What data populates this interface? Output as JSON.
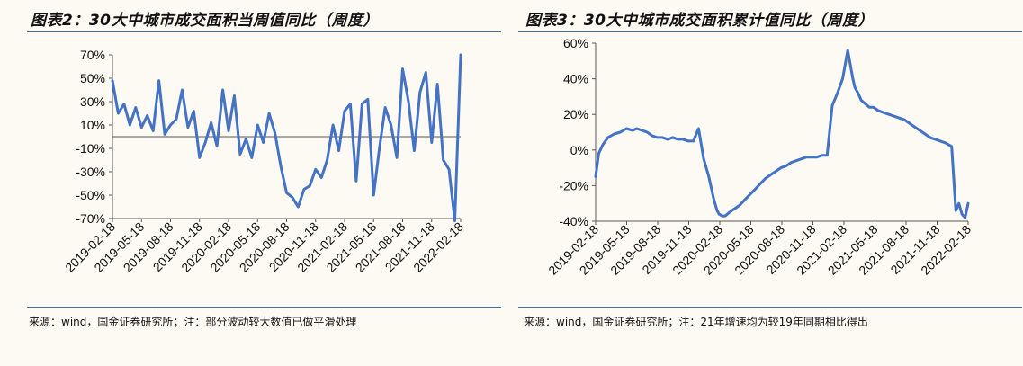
{
  "chart_data": [
    {
      "type": "line",
      "title": "图表2：30大中城市成交面积当周值同比（周度）",
      "xlabel": "",
      "ylabel": "",
      "ylim": [
        -70,
        70
      ],
      "yticks": [
        "70%",
        "50%",
        "30%",
        "10%",
        "-10%",
        "-30%",
        "-50%",
        "-70%"
      ],
      "xticks": [
        "2019-02-18",
        "2019-05-18",
        "2019-08-18",
        "2019-11-18",
        "2020-02-18",
        "2020-05-18",
        "2020-08-18",
        "2020-11-18",
        "2021-02-18",
        "2021-05-18",
        "2021-08-18",
        "2021-11-18",
        "2022-02-18"
      ],
      "grid": false,
      "legend": "none",
      "baseline": 0,
      "color": "#4472c4",
      "x": [
        0,
        0.6,
        1.2,
        1.8,
        2.4,
        3,
        3.6,
        4.2,
        4.8,
        5.4,
        6,
        6.6,
        7.2,
        7.8,
        8.4,
        9,
        9.6,
        10.2,
        10.8,
        11.4,
        12,
        12.6,
        13.2,
        13.8,
        14.4,
        15,
        15.6,
        16.2,
        16.8,
        17.4,
        18,
        18.6,
        19.2,
        19.8,
        20.4,
        21,
        21.6,
        22.2,
        22.8,
        23.4,
        24,
        24.6,
        25.2,
        25.8,
        26.4,
        27,
        27.6,
        28.2,
        28.8,
        29.4,
        30,
        30.6,
        31.2,
        31.8,
        32.4,
        33,
        33.6,
        34.2,
        34.8,
        35.4,
        36
      ],
      "values": [
        48,
        20,
        28,
        10,
        25,
        8,
        18,
        5,
        48,
        2,
        10,
        15,
        40,
        8,
        22,
        -18,
        -5,
        12,
        -8,
        40,
        5,
        35,
        -15,
        -2,
        -18,
        10,
        -5,
        20,
        3,
        -25,
        -48,
        -52,
        -60,
        -45,
        -42,
        -28,
        -35,
        -20,
        10,
        -12,
        22,
        28,
        -38,
        28,
        32,
        -50,
        -10,
        25,
        10,
        -18,
        58,
        30,
        -12,
        38,
        55,
        -5,
        45,
        -20,
        -28,
        -72,
        70
      ]
    },
    {
      "type": "line",
      "title": "图表3：30大中城市成交面积累计值同比（周度）",
      "xlabel": "",
      "ylabel": "",
      "ylim": [
        -40,
        60
      ],
      "yticks": [
        "60%",
        "40%",
        "20%",
        "0%",
        "-20%",
        "-40%"
      ],
      "xticks": [
        "2019-02-18",
        "2019-05-18",
        "2019-08-18",
        "2019-11-18",
        "2020-02-18",
        "2020-05-18",
        "2020-08-18",
        "2020-11-18",
        "2021-02-18",
        "2021-05-18",
        "2021-08-18",
        "2021-11-18",
        "2022-02-18"
      ],
      "grid": false,
      "legend": "none",
      "color": "#4472c4",
      "x": [
        0,
        0.3,
        0.7,
        1.2,
        1.8,
        2.4,
        3,
        3.6,
        4,
        4.5,
        5,
        5.5,
        6,
        6.5,
        7,
        7.5,
        8,
        8.5,
        9,
        9.5,
        10,
        10.5,
        11,
        11.5,
        11.8,
        12,
        12.3,
        12.6,
        13,
        13.5,
        14,
        14.5,
        15,
        15.5,
        16,
        16.5,
        17,
        17.5,
        18,
        18.5,
        19,
        19.5,
        20,
        20.5,
        21,
        21.5,
        22,
        22.5,
        23,
        23.5,
        24,
        24.5,
        25,
        25.2,
        25.5,
        25.8,
        26.2,
        26.6,
        27,
        27.5,
        28,
        28.5,
        29,
        29.5,
        30,
        30.5,
        31,
        31.5,
        32,
        32.5,
        33,
        33.5,
        34,
        34.3,
        34.6,
        35,
        35.3,
        35.6,
        35.9,
        36.2
      ],
      "values": [
        -15,
        -2,
        3,
        7,
        9,
        10,
        12,
        11,
        12,
        11,
        10,
        8,
        7,
        7,
        6,
        7,
        6,
        6,
        5,
        5,
        12,
        -5,
        -15,
        -28,
        -34,
        -36,
        -37,
        -37,
        -35,
        -33,
        -31,
        -28,
        -25,
        -22,
        -19,
        -16,
        -14,
        -12,
        -10,
        -9,
        -7,
        -6,
        -5,
        -4,
        -4,
        -4,
        -3,
        -3,
        25,
        32,
        40,
        56,
        40,
        35,
        32,
        28,
        26,
        24,
        24,
        22,
        21,
        20,
        19,
        18,
        17,
        15,
        13,
        11,
        9,
        7,
        6,
        5,
        4,
        3,
        2,
        -34,
        -30,
        -36,
        -38,
        -30
      ]
    }
  ],
  "notes": {
    "left_source": "来源：wind，国金证券研究所；注：部分波动较大数值已做平滑处理",
    "right_source": "来源：wind，国金证券研究所；注：21年增速均为较19年同期相比得出"
  }
}
